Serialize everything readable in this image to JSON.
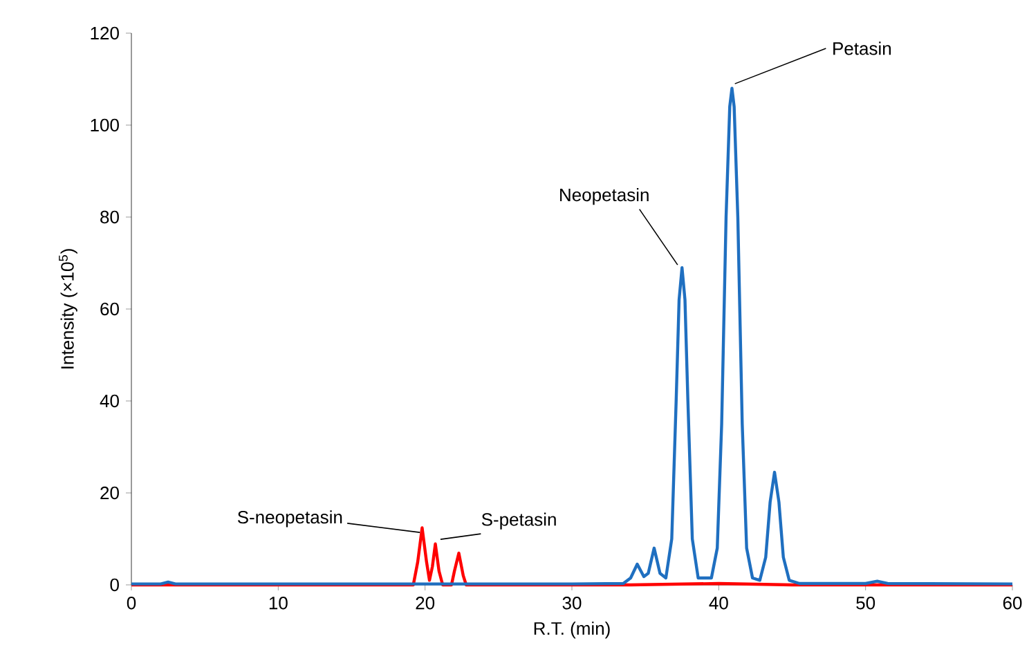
{
  "chart_data": {
    "type": "line",
    "xlabel": "R.T. (min)",
    "ylabel": "Intensity (×10$^{5}$)",
    "xlim": [
      0,
      60
    ],
    "xticks": [
      0,
      10,
      20,
      30,
      40,
      50,
      60
    ],
    "ylim": [
      0,
      120
    ],
    "yticks": [
      0,
      20,
      40,
      60,
      80,
      100,
      120
    ],
    "grid": false,
    "marker": "none",
    "line_style": "solid",
    "series": [
      {
        "color": "#ff0000",
        "x": [
          0,
          19.2,
          19.5,
          19.8,
          20.1,
          20.3,
          20.5,
          20.7,
          20.95,
          21.2,
          21.8,
          22.0,
          22.3,
          22.6,
          22.8,
          34,
          40,
          45,
          60
        ],
        "values": [
          0,
          0,
          5,
          12.4,
          5,
          1,
          4,
          8.9,
          3,
          0,
          0,
          3,
          6.9,
          2,
          0,
          0,
          0.3,
          0,
          0
        ]
      },
      {
        "color": "#1f6fc0",
        "x": [
          0,
          2,
          2.5,
          3,
          10,
          20,
          30,
          33.5,
          34.0,
          34.45,
          34.9,
          35.2,
          35.6,
          36.0,
          36.4,
          36.8,
          37.1,
          37.3,
          37.5,
          37.7,
          37.9,
          38.2,
          38.6,
          39.5,
          39.9,
          40.2,
          40.5,
          40.75,
          40.9,
          41.05,
          41.3,
          41.6,
          41.9,
          42.3,
          42.8,
          43.2,
          43.5,
          43.8,
          44.1,
          44.4,
          44.8,
          45.5,
          50,
          50.8,
          51.5,
          60
        ],
        "values": [
          0.2,
          0.2,
          0.6,
          0.2,
          0.2,
          0.2,
          0.2,
          0.3,
          1.5,
          4.5,
          1.8,
          2.5,
          8,
          2.5,
          1.5,
          10,
          40,
          62,
          69,
          62,
          40,
          10,
          1.5,
          1.5,
          8,
          35,
          80,
          104,
          108,
          104,
          80,
          35,
          8,
          1.5,
          1,
          6,
          18,
          24.5,
          18,
          6,
          1,
          0.3,
          0.3,
          0.8,
          0.3,
          0.2
        ]
      }
    ],
    "annotations": [
      {
        "text": "S-neopetasin",
        "x": 19.8,
        "y": 12.4
      },
      {
        "text": "S-petasin",
        "x": 20.7,
        "y": 8.9
      },
      {
        "text": "Neopetasin",
        "x": 37.5,
        "y": 69
      },
      {
        "text": "Petasin",
        "x": 40.9,
        "y": 108
      }
    ]
  }
}
